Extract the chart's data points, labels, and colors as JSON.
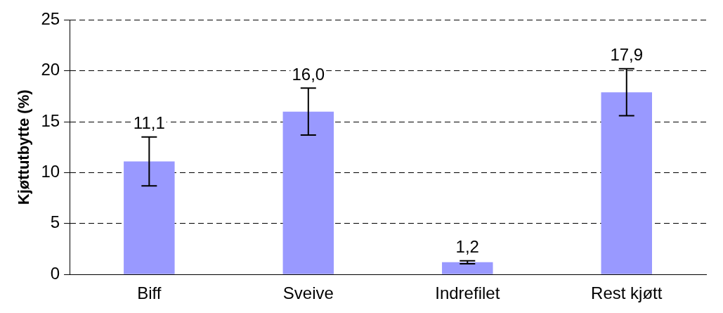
{
  "chart_data": {
    "type": "bar",
    "ylabel": "Kjøttutbytte (%)",
    "categories": [
      "Biff",
      "Sveive",
      "Indrefilet",
      "Rest kjøtt"
    ],
    "values": [
      11.1,
      16.0,
      1.2,
      17.9
    ],
    "value_labels": [
      "11,1",
      "16,0",
      "1,2",
      "17,9"
    ],
    "errors": [
      2.4,
      2.3,
      0.15,
      2.3
    ],
    "color": "#9999ff",
    "ylim": [
      0,
      25
    ],
    "yticks": [
      0,
      5,
      10,
      15,
      20,
      25
    ],
    "grid": "y",
    "legend": false
  }
}
